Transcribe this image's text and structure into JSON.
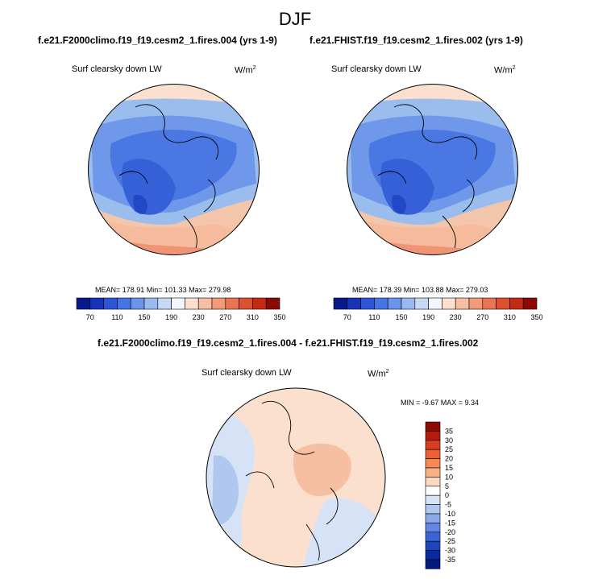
{
  "figure": {
    "title": "DJF",
    "diff_title": "f.e21.F2000climo.f19_f19.cesm2_1.fires.004 - f.e21.FHIST.f19_f19.cesm2_1.fires.002"
  },
  "panels": [
    {
      "case": "f.e21.F2000climo.f19_f19.cesm2_1.fires.004 (yrs 1-9)",
      "variable": "Surf clearsky down LW",
      "units": "W/m",
      "units_sup": "2",
      "stats": "MEAN= 178.91  Min= 101.33  Max= 279.98"
    },
    {
      "case": "f.e21.FHIST.f19_f19.cesm2_1.fires.002 (yrs 1-9)",
      "variable": "Surf clearsky down LW",
      "units": "W/m",
      "units_sup": "2",
      "stats": "MEAN= 178.39  Min= 103.88  Max= 279.03"
    }
  ],
  "diff_panel": {
    "variable": "Surf clearsky down LW",
    "units": "W/m",
    "units_sup": "2",
    "stats": "MIN =  -9.67 MAX =   9.34"
  },
  "colorbar_abs": {
    "colors": [
      "#061a8a",
      "#1833b8",
      "#2e55d6",
      "#4674e4",
      "#6b94ea",
      "#9bb9f0",
      "#c8d9f5",
      "#f2f5fb",
      "#fbe0cf",
      "#f7bfa2",
      "#f29a78",
      "#ea7553",
      "#dd5130",
      "#c52a14",
      "#8c0a05"
    ],
    "labels": [
      "70",
      "110",
      "150",
      "190",
      "230",
      "270",
      "310",
      "350"
    ]
  },
  "colorbar_diff": {
    "colors": [
      "#8c0a05",
      "#b51c0c",
      "#d83d1f",
      "#ec6034",
      "#f58a55",
      "#f7b085",
      "#fbd9c1",
      "#ffffff",
      "#d6e2f6",
      "#b0c7f0",
      "#8aa9ea",
      "#6387e2",
      "#3d64d6",
      "#1e44bf",
      "#0b2aa0",
      "#061a7d"
    ],
    "labels": [
      "35",
      "30",
      "25",
      "20",
      "15",
      "10",
      "5",
      "0",
      "-5",
      "-10",
      "-15",
      "-20",
      "-25",
      "-30",
      "-35"
    ]
  }
}
